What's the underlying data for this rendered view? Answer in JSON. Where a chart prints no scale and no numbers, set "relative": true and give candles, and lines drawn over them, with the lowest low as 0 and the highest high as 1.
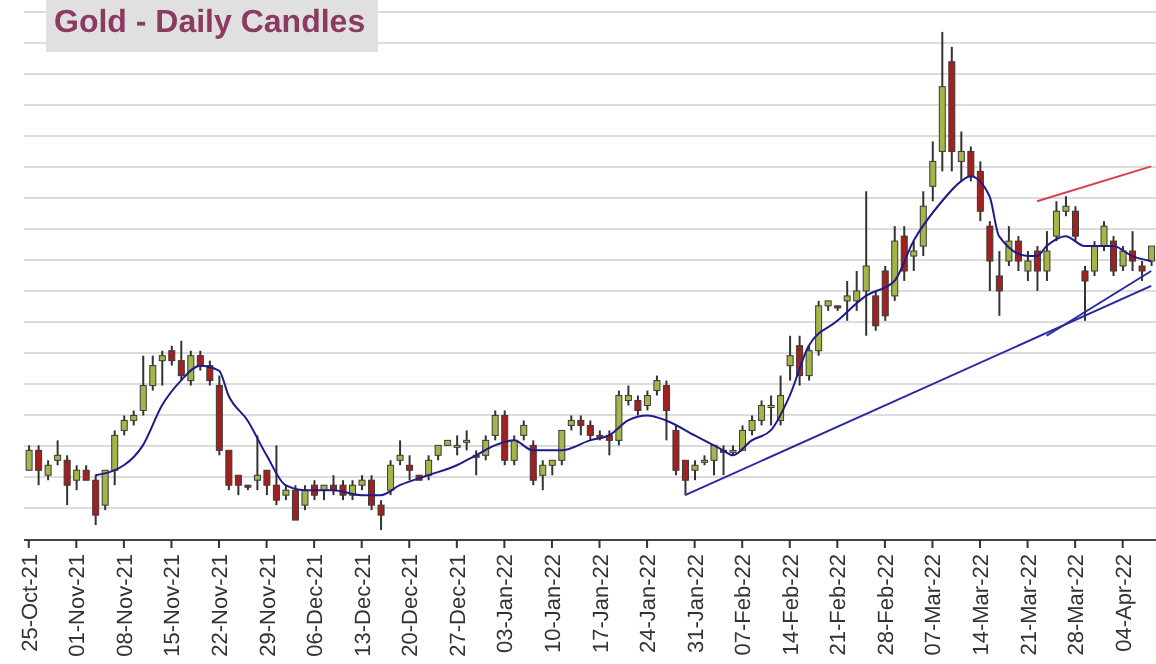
{
  "chart_data": {
    "type": "candlestick",
    "title": "Gold - Daily Candles",
    "relative": true,
    "grid": "y",
    "tick_labels": "x",
    "categories": [
      "25-Oct-21",
      null,
      null,
      null,
      null,
      "01-Nov-21",
      null,
      null,
      null,
      null,
      "08-Nov-21",
      null,
      null,
      null,
      null,
      "15-Nov-21",
      null,
      null,
      null,
      null,
      "22-Nov-21",
      null,
      null,
      null,
      null,
      "29-Nov-21",
      null,
      null,
      null,
      null,
      "06-Dec-21",
      null,
      null,
      null,
      null,
      "13-Dec-21",
      null,
      null,
      null,
      null,
      "20-Dec-21",
      null,
      null,
      null,
      null,
      "27-Dec-21",
      null,
      null,
      null,
      null,
      "03-Jan-22",
      null,
      null,
      null,
      null,
      "10-Jan-22",
      null,
      null,
      null,
      null,
      "17-Jan-22",
      null,
      null,
      null,
      null,
      "24-Jan-22",
      null,
      null,
      null,
      null,
      "31-Jan-22",
      null,
      null,
      null,
      null,
      "07-Feb-22",
      null,
      null,
      null,
      null,
      "14-Feb-22",
      null,
      null,
      null,
      null,
      "21-Feb-22",
      null,
      null,
      null,
      null,
      "28-Feb-22",
      null,
      null,
      null,
      null,
      "07-Mar-22",
      null,
      null,
      null,
      null,
      "14-Mar-22",
      null,
      null,
      null,
      null,
      "21-Mar-22",
      null,
      null,
      null,
      null,
      "28-Mar-22",
      null,
      null,
      null,
      null,
      "04-Apr-22",
      null,
      null,
      null
    ],
    "ohlc": [
      [
        0.12,
        0.17,
        0.12,
        0.16
      ],
      [
        0.16,
        0.17,
        0.09,
        0.12
      ],
      [
        0.11,
        0.14,
        0.1,
        0.13
      ],
      [
        0.14,
        0.18,
        0.13,
        0.15
      ],
      [
        0.14,
        0.15,
        0.05,
        0.09
      ],
      [
        0.1,
        0.13,
        0.08,
        0.12
      ],
      [
        0.12,
        0.13,
        0.1,
        0.1
      ],
      [
        0.1,
        0.11,
        0.01,
        0.03
      ],
      [
        0.05,
        0.12,
        0.04,
        0.12
      ],
      [
        0.12,
        0.2,
        0.09,
        0.19
      ],
      [
        0.2,
        0.23,
        0.19,
        0.22
      ],
      [
        0.22,
        0.24,
        0.21,
        0.23
      ],
      [
        0.24,
        0.35,
        0.23,
        0.29
      ],
      [
        0.29,
        0.35,
        0.28,
        0.33
      ],
      [
        0.34,
        0.36,
        0.29,
        0.35
      ],
      [
        0.36,
        0.37,
        0.33,
        0.34
      ],
      [
        0.34,
        0.38,
        0.3,
        0.31
      ],
      [
        0.3,
        0.36,
        0.29,
        0.35
      ],
      [
        0.35,
        0.36,
        0.32,
        0.33
      ],
      [
        0.33,
        0.34,
        0.29,
        0.3
      ],
      [
        0.29,
        0.31,
        0.15,
        0.16
      ],
      [
        0.16,
        0.16,
        0.08,
        0.09
      ],
      [
        0.11,
        0.11,
        0.07,
        0.09
      ],
      [
        0.09,
        0.09,
        0.08,
        0.09
      ],
      [
        0.1,
        0.19,
        0.08,
        0.11
      ],
      [
        0.12,
        0.12,
        0.07,
        0.09
      ],
      [
        0.09,
        0.17,
        0.05,
        0.06
      ],
      [
        0.07,
        0.09,
        0.06,
        0.08
      ],
      [
        0.08,
        0.09,
        0.02,
        0.02
      ],
      [
        0.05,
        0.09,
        0.04,
        0.08
      ],
      [
        0.09,
        0.1,
        0.06,
        0.07
      ],
      [
        0.08,
        0.09,
        0.06,
        0.09
      ],
      [
        0.09,
        0.11,
        0.07,
        0.08
      ],
      [
        0.09,
        0.1,
        0.06,
        0.07
      ],
      [
        0.07,
        0.1,
        0.06,
        0.09
      ],
      [
        0.09,
        0.11,
        0.08,
        0.1
      ],
      [
        0.1,
        0.11,
        0.04,
        0.05
      ],
      [
        0.05,
        0.06,
        0,
        0.03
      ],
      [
        0.08,
        0.14,
        0.07,
        0.13
      ],
      [
        0.14,
        0.18,
        0.13,
        0.15
      ],
      [
        0.13,
        0.15,
        0.1,
        0.12
      ],
      [
        0.11,
        0.11,
        0.1,
        0.1
      ],
      [
        0.11,
        0.15,
        0.1,
        0.14
      ],
      [
        0.15,
        0.17,
        0.14,
        0.17
      ],
      [
        0.17,
        0.18,
        0.17,
        0.18
      ],
      [
        0.17,
        0.19,
        0.15,
        0.17
      ],
      [
        0.18,
        0.2,
        0.16,
        0.18
      ],
      [
        0.15,
        0.16,
        0.11,
        0.15
      ],
      [
        0.15,
        0.19,
        0.14,
        0.18
      ],
      [
        0.19,
        0.24,
        0.18,
        0.23
      ],
      [
        0.23,
        0.24,
        0.13,
        0.14
      ],
      [
        0.14,
        0.19,
        0.13,
        0.18
      ],
      [
        0.19,
        0.22,
        0.18,
        0.21
      ],
      [
        0.17,
        0.18,
        0.09,
        0.1
      ],
      [
        0.11,
        0.14,
        0.08,
        0.13
      ],
      [
        0.13,
        0.14,
        0.11,
        0.14
      ],
      [
        0.14,
        0.2,
        0.13,
        0.2
      ],
      [
        0.21,
        0.23,
        0.2,
        0.22
      ],
      [
        0.22,
        0.23,
        0.19,
        0.21
      ],
      [
        0.21,
        0.22,
        0.18,
        0.19
      ],
      [
        0.19,
        0.2,
        0.18,
        0.19
      ],
      [
        0.19,
        0.2,
        0.15,
        0.18
      ],
      [
        0.18,
        0.28,
        0.17,
        0.27
      ],
      [
        0.26,
        0.29,
        0.25,
        0.27
      ],
      [
        0.26,
        0.27,
        0.23,
        0.24
      ],
      [
        0.25,
        0.28,
        0.24,
        0.27
      ],
      [
        0.28,
        0.31,
        0.27,
        0.3
      ],
      [
        0.29,
        0.3,
        0.18,
        0.24
      ],
      [
        0.2,
        0.21,
        0.11,
        0.12
      ],
      [
        0.14,
        0.14,
        0.07,
        0.1
      ],
      [
        0.12,
        0.14,
        0.1,
        0.13
      ],
      [
        0.14,
        0.15,
        0.13,
        0.14
      ],
      [
        0.14,
        0.17,
        0.11,
        0.17
      ],
      [
        0.16,
        0.17,
        0.11,
        0.16
      ],
      [
        0.16,
        0.17,
        0.15,
        0.16
      ],
      [
        0.16,
        0.21,
        0.16,
        0.2
      ],
      [
        0.2,
        0.23,
        0.19,
        0.22
      ],
      [
        0.22,
        0.26,
        0.21,
        0.25
      ],
      [
        0.25,
        0.27,
        0.21,
        0.25
      ],
      [
        0.22,
        0.31,
        0.21,
        0.27
      ],
      [
        0.33,
        0.39,
        0.3,
        0.35
      ],
      [
        0.37,
        0.39,
        0.29,
        0.31
      ],
      [
        0.31,
        0.37,
        0.3,
        0.36
      ],
      [
        0.36,
        0.46,
        0.35,
        0.45
      ],
      [
        0.45,
        0.46,
        0.44,
        0.46
      ],
      [
        0.45,
        0.45,
        0.44,
        0.45
      ],
      [
        0.46,
        0.5,
        0.42,
        0.47
      ],
      [
        0.46,
        0.52,
        0.44,
        0.48
      ],
      [
        0.48,
        0.68,
        0.39,
        0.53
      ],
      [
        0.47,
        0.48,
        0.4,
        0.41
      ],
      [
        0.52,
        0.53,
        0.42,
        0.43
      ],
      [
        0.47,
        0.61,
        0.46,
        0.58
      ],
      [
        0.59,
        0.61,
        0.5,
        0.52
      ],
      [
        0.55,
        0.58,
        0.52,
        0.56
      ],
      [
        0.57,
        0.68,
        0.55,
        0.65
      ],
      [
        0.69,
        0.78,
        0.66,
        0.74
      ],
      [
        0.76,
        1,
        0.72,
        0.89
      ],
      [
        0.94,
        0.97,
        0.72,
        0.76
      ],
      [
        0.74,
        0.8,
        0.7,
        0.76
      ],
      [
        0.76,
        0.77,
        0.7,
        0.71
      ],
      [
        0.72,
        0.74,
        0.62,
        0.64
      ],
      [
        0.61,
        0.62,
        0.48,
        0.54
      ],
      [
        0.51,
        0.56,
        0.43,
        0.48
      ],
      [
        0.54,
        0.61,
        0.53,
        0.58
      ],
      [
        0.58,
        0.59,
        0.52,
        0.54
      ],
      [
        0.52,
        0.56,
        0.5,
        0.54
      ],
      [
        0.56,
        0.57,
        0.48,
        0.52
      ],
      [
        0.52,
        0.6,
        0.5,
        0.56
      ],
      [
        0.59,
        0.66,
        0.58,
        0.64
      ],
      [
        0.64,
        0.67,
        0.63,
        0.65
      ],
      [
        0.64,
        0.65,
        0.58,
        0.59
      ],
      [
        0.52,
        0.53,
        0.42,
        0.5
      ],
      [
        0.52,
        0.58,
        0.51,
        0.57
      ],
      [
        0.57,
        0.62,
        0.56,
        0.61
      ],
      [
        0.58,
        0.59,
        0.51,
        0.52
      ],
      [
        0.53,
        0.57,
        0.52,
        0.56
      ],
      [
        0.56,
        0.6,
        0.52,
        0.54
      ],
      [
        0.53,
        0.54,
        0.5,
        0.52
      ],
      [
        0.54,
        0.57,
        0.53,
        0.57
      ]
    ],
    "colors": [
      "#a5b548",
      "#a3201f",
      "#a5b548",
      "#a5b548",
      "#a3201f",
      "#a5b548",
      "#a3201f",
      "#a3201f",
      "#a5b548",
      "#a5b548",
      "#a5b548",
      "#a5b548",
      "#a5b548",
      "#a5b548",
      "#a5b548",
      "#a3201f",
      "#a3201f",
      "#a5b548",
      "#a3201f",
      "#a3201f",
      "#a3201f",
      "#a3201f",
      "#a3201f",
      "#a3201f",
      "#a5b548",
      "#a3201f",
      "#a3201f",
      "#a5b548",
      "#a3201f",
      "#a5b548",
      "#a3201f",
      "#a5b548",
      "#a3201f",
      "#a3201f",
      "#a5b548",
      "#a5b548",
      "#a3201f",
      "#a3201f",
      "#a5b548",
      "#a5b548",
      "#a3201f",
      "#a3201f",
      "#a5b548",
      "#a5b548",
      "#a5b548",
      "#a5b548",
      "#a5b548",
      "#a3201f",
      "#a5b548",
      "#a5b548",
      "#a3201f",
      "#a5b548",
      "#a5b548",
      "#a3201f",
      "#a5b548",
      "#a5b548",
      "#a5b548",
      "#a5b548",
      "#a3201f",
      "#a3201f",
      "#a3201f",
      "#a3201f",
      "#a5b548",
      "#a5b548",
      "#a3201f",
      "#a5b548",
      "#a5b548",
      "#a3201f",
      "#a3201f",
      "#a3201f",
      "#a5b548",
      "#a5b548",
      "#a5b548",
      "#a3201f",
      "#a5b548",
      "#a5b548",
      "#a5b548",
      "#a5b548",
      "#a5b548",
      "#a5b548",
      "#a5b548",
      "#a3201f",
      "#a5b548",
      "#a5b548",
      "#a5b548",
      "#a3201f",
      "#a5b548",
      "#a5b548",
      "#a5b548",
      "#a3201f",
      "#a3201f",
      "#a5b548",
      "#a3201f",
      "#a5b548",
      "#a5b548",
      "#a5b548",
      "#a5b548",
      "#a3201f",
      "#a5b548",
      "#a3201f",
      "#a3201f",
      "#a3201f",
      "#a3201f",
      "#a5b548",
      "#a3201f",
      "#a5b548",
      "#a3201f",
      "#a5b548",
      "#a5b548",
      "#a5b548",
      "#a3201f",
      "#a3201f",
      "#a5b548",
      "#a5b548",
      "#a3201f",
      "#a5b548",
      "#a3201f",
      "#a3201f",
      "#a5b548"
    ],
    "series": [
      {
        "type": "line",
        "color": "#1c1c8a",
        "values": [
          null,
          null,
          null,
          null,
          null,
          null,
          null,
          0.11,
          null,
          null,
          0.13,
          null,
          0.17,
          null,
          0.25,
          null,
          0.3,
          null,
          0.33,
          null,
          0.32,
          0.27,
          null,
          0.22,
          null,
          0.15,
          null,
          0.09,
          null,
          0.08,
          null,
          null,
          0.08,
          null,
          null,
          0.07,
          null,
          0.07,
          null,
          0.09,
          null,
          null,
          0.11,
          null,
          null,
          0.13,
          null,
          0.15,
          null,
          0.17,
          null,
          0.18,
          null,
          0.16,
          null,
          null,
          0.16,
          null,
          null,
          0.18,
          null,
          0.19,
          null,
          0.22,
          null,
          0.23,
          null,
          0.22,
          null,
          null,
          0.19,
          null,
          null,
          0.16,
          0.15,
          null,
          0.18,
          null,
          0.2,
          null,
          0.27,
          null,
          0.37,
          null,
          null,
          0.42,
          null,
          null,
          0.47,
          null,
          null,
          0.5,
          null,
          0.58,
          null,
          null,
          0.66,
          null,
          0.7,
          0.71,
          null,
          0.67,
          0.59,
          null,
          null,
          0.55,
          0.55,
          0.57,
          null,
          0.59,
          null,
          0.57,
          null,
          null,
          0.57,
          null,
          0.55,
          null,
          0.54
        ]
      },
      {
        "type": "line",
        "color": "#2a2aa0",
        "values": [
          null,
          null,
          null,
          null,
          null,
          null,
          null,
          null,
          null,
          null,
          null,
          null,
          null,
          null,
          null,
          null,
          null,
          null,
          null,
          null,
          null,
          null,
          null,
          null,
          null,
          null,
          null,
          null,
          null,
          null,
          null,
          null,
          null,
          null,
          null,
          null,
          null,
          null,
          null,
          null,
          null,
          null,
          null,
          null,
          null,
          null,
          null,
          null,
          null,
          null,
          null,
          null,
          null,
          null,
          null,
          null,
          null,
          null,
          null,
          null,
          null,
          null,
          null,
          null,
          null,
          null,
          null,
          null,
          null,
          0.07,
          null,
          null,
          null,
          null,
          null,
          null,
          null,
          null,
          null,
          null,
          null,
          null,
          null,
          null,
          null,
          null,
          null,
          null,
          null,
          null,
          null,
          null,
          null,
          null,
          null,
          null,
          null,
          null,
          null,
          null,
          null,
          null,
          null,
          null,
          null,
          null,
          null,
          null,
          null,
          null,
          null,
          null,
          null,
          null,
          null,
          null,
          null,
          null,
          0.49
        ]
      },
      {
        "type": "line",
        "color": "#2a2aa0",
        "values": [
          null,
          null,
          null,
          null,
          null,
          null,
          null,
          null,
          null,
          null,
          null,
          null,
          null,
          null,
          null,
          null,
          null,
          null,
          null,
          null,
          null,
          null,
          null,
          null,
          null,
          null,
          null,
          null,
          null,
          null,
          null,
          null,
          null,
          null,
          null,
          null,
          null,
          null,
          null,
          null,
          null,
          null,
          null,
          null,
          null,
          null,
          null,
          null,
          null,
          null,
          null,
          null,
          null,
          null,
          null,
          null,
          null,
          null,
          null,
          null,
          null,
          null,
          null,
          null,
          null,
          null,
          null,
          null,
          null,
          null,
          null,
          null,
          null,
          null,
          null,
          null,
          null,
          null,
          null,
          null,
          null,
          null,
          null,
          null,
          null,
          null,
          null,
          null,
          null,
          null,
          null,
          null,
          null,
          null,
          null,
          null,
          null,
          null,
          null,
          null,
          null,
          null,
          null,
          null,
          null,
          null,
          null,
          0.39,
          null,
          null,
          null,
          null,
          null,
          null,
          null,
          null,
          null,
          null,
          0.52
        ]
      },
      {
        "type": "line",
        "color": "#d8404f",
        "values": [
          null,
          null,
          null,
          null,
          null,
          null,
          null,
          null,
          null,
          null,
          null,
          null,
          null,
          null,
          null,
          null,
          null,
          null,
          null,
          null,
          null,
          null,
          null,
          null,
          null,
          null,
          null,
          null,
          null,
          null,
          null,
          null,
          null,
          null,
          null,
          null,
          null,
          null,
          null,
          null,
          null,
          null,
          null,
          null,
          null,
          null,
          null,
          null,
          null,
          null,
          null,
          null,
          null,
          null,
          null,
          null,
          null,
          null,
          null,
          null,
          null,
          null,
          null,
          null,
          null,
          null,
          null,
          null,
          null,
          null,
          null,
          null,
          null,
          null,
          null,
          null,
          null,
          null,
          null,
          null,
          null,
          null,
          null,
          null,
          null,
          null,
          null,
          null,
          null,
          null,
          null,
          null,
          null,
          null,
          null,
          null,
          null,
          null,
          null,
          null,
          null,
          null,
          null,
          null,
          null,
          null,
          0.66,
          null,
          null,
          null,
          null,
          null,
          null,
          null,
          null,
          null,
          null,
          null,
          0.73
        ]
      }
    ]
  }
}
